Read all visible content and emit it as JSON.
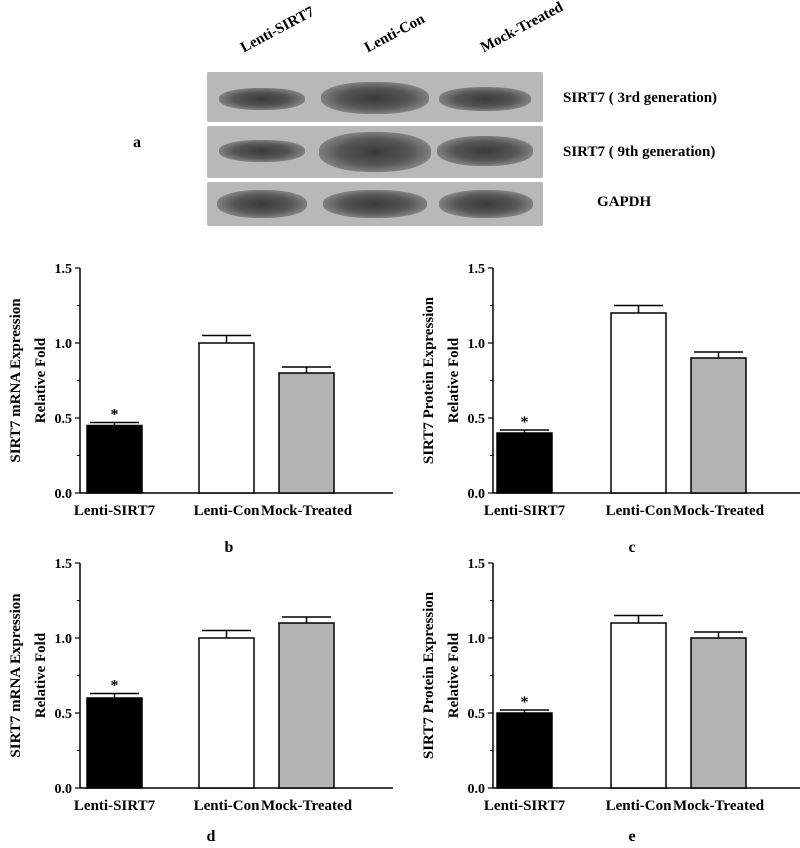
{
  "panel_a": {
    "letter": "a",
    "lanes": [
      "Lenti-SIRT7",
      "Lenti-Con",
      "Mock-Treated"
    ],
    "rows": [
      {
        "label": "SIRT7 ( 3rd generation)",
        "intensities": [
          0.55,
          0.85,
          0.6
        ]
      },
      {
        "label": "SIRT7 ( 9th generation)",
        "intensities": [
          0.55,
          0.95,
          0.75
        ]
      },
      {
        "label": "GAPDH",
        "intensities": [
          0.8,
          0.8,
          0.8
        ]
      }
    ]
  },
  "chart_data": [
    {
      "type": "bar",
      "panel": "b",
      "categories": [
        "Lenti-SIRT7",
        "Lenti-Con",
        "Mock-Treated"
      ],
      "values": [
        0.45,
        1.0,
        0.8
      ],
      "errors": [
        0.02,
        0.05,
        0.04
      ],
      "significance": [
        "*",
        "",
        ""
      ],
      "ylabel_line1": "SIRT7 mRNA Expression",
      "ylabel_line2": "Relative Fold",
      "ylim": [
        0.0,
        1.5
      ],
      "yticks": [
        "0.0",
        "0.5",
        "1.0",
        "1.5"
      ],
      "bar_colors": [
        "#000000",
        "#ffffff",
        "#b3b3b3"
      ]
    },
    {
      "type": "bar",
      "panel": "c",
      "categories": [
        "Lenti-SIRT7",
        "Lenti-Con",
        "Mock-Treated"
      ],
      "values": [
        0.4,
        1.2,
        0.9
      ],
      "errors": [
        0.02,
        0.05,
        0.04
      ],
      "significance": [
        "*",
        "",
        ""
      ],
      "ylabel_line1": "SIRT7 Protein Expression",
      "ylabel_line2": "Relative Fold",
      "ylim": [
        0.0,
        1.5
      ],
      "yticks": [
        "0.0",
        "0.5",
        "1.0",
        "1.5"
      ],
      "bar_colors": [
        "#000000",
        "#ffffff",
        "#b3b3b3"
      ]
    },
    {
      "type": "bar",
      "panel": "d",
      "categories": [
        "Lenti-SIRT7",
        "Lenti-Con",
        "Mock-Treated"
      ],
      "values": [
        0.6,
        1.0,
        1.1
      ],
      "errors": [
        0.03,
        0.05,
        0.04
      ],
      "significance": [
        "*",
        "",
        ""
      ],
      "ylabel_line1": "SIRT7 mRNA Expression",
      "ylabel_line2": "Relative Fold",
      "ylim": [
        0.0,
        1.5
      ],
      "yticks": [
        "0.0",
        "0.5",
        "1.0",
        "1.5"
      ],
      "bar_colors": [
        "#000000",
        "#ffffff",
        "#b3b3b3"
      ]
    },
    {
      "type": "bar",
      "panel": "e",
      "categories": [
        "Lenti-SIRT7",
        "Lenti-Con",
        "Mock-Treated"
      ],
      "values": [
        0.5,
        1.1,
        1.0
      ],
      "errors": [
        0.02,
        0.05,
        0.04
      ],
      "significance": [
        "*",
        "",
        ""
      ],
      "ylabel_line1": "SIRT7 Protein Expression",
      "ylabel_line2": "Relative Fold",
      "ylim": [
        0.0,
        1.5
      ],
      "yticks": [
        "0.0",
        "0.5",
        "1.0",
        "1.5"
      ],
      "bar_colors": [
        "#000000",
        "#ffffff",
        "#b3b3b3"
      ]
    }
  ]
}
